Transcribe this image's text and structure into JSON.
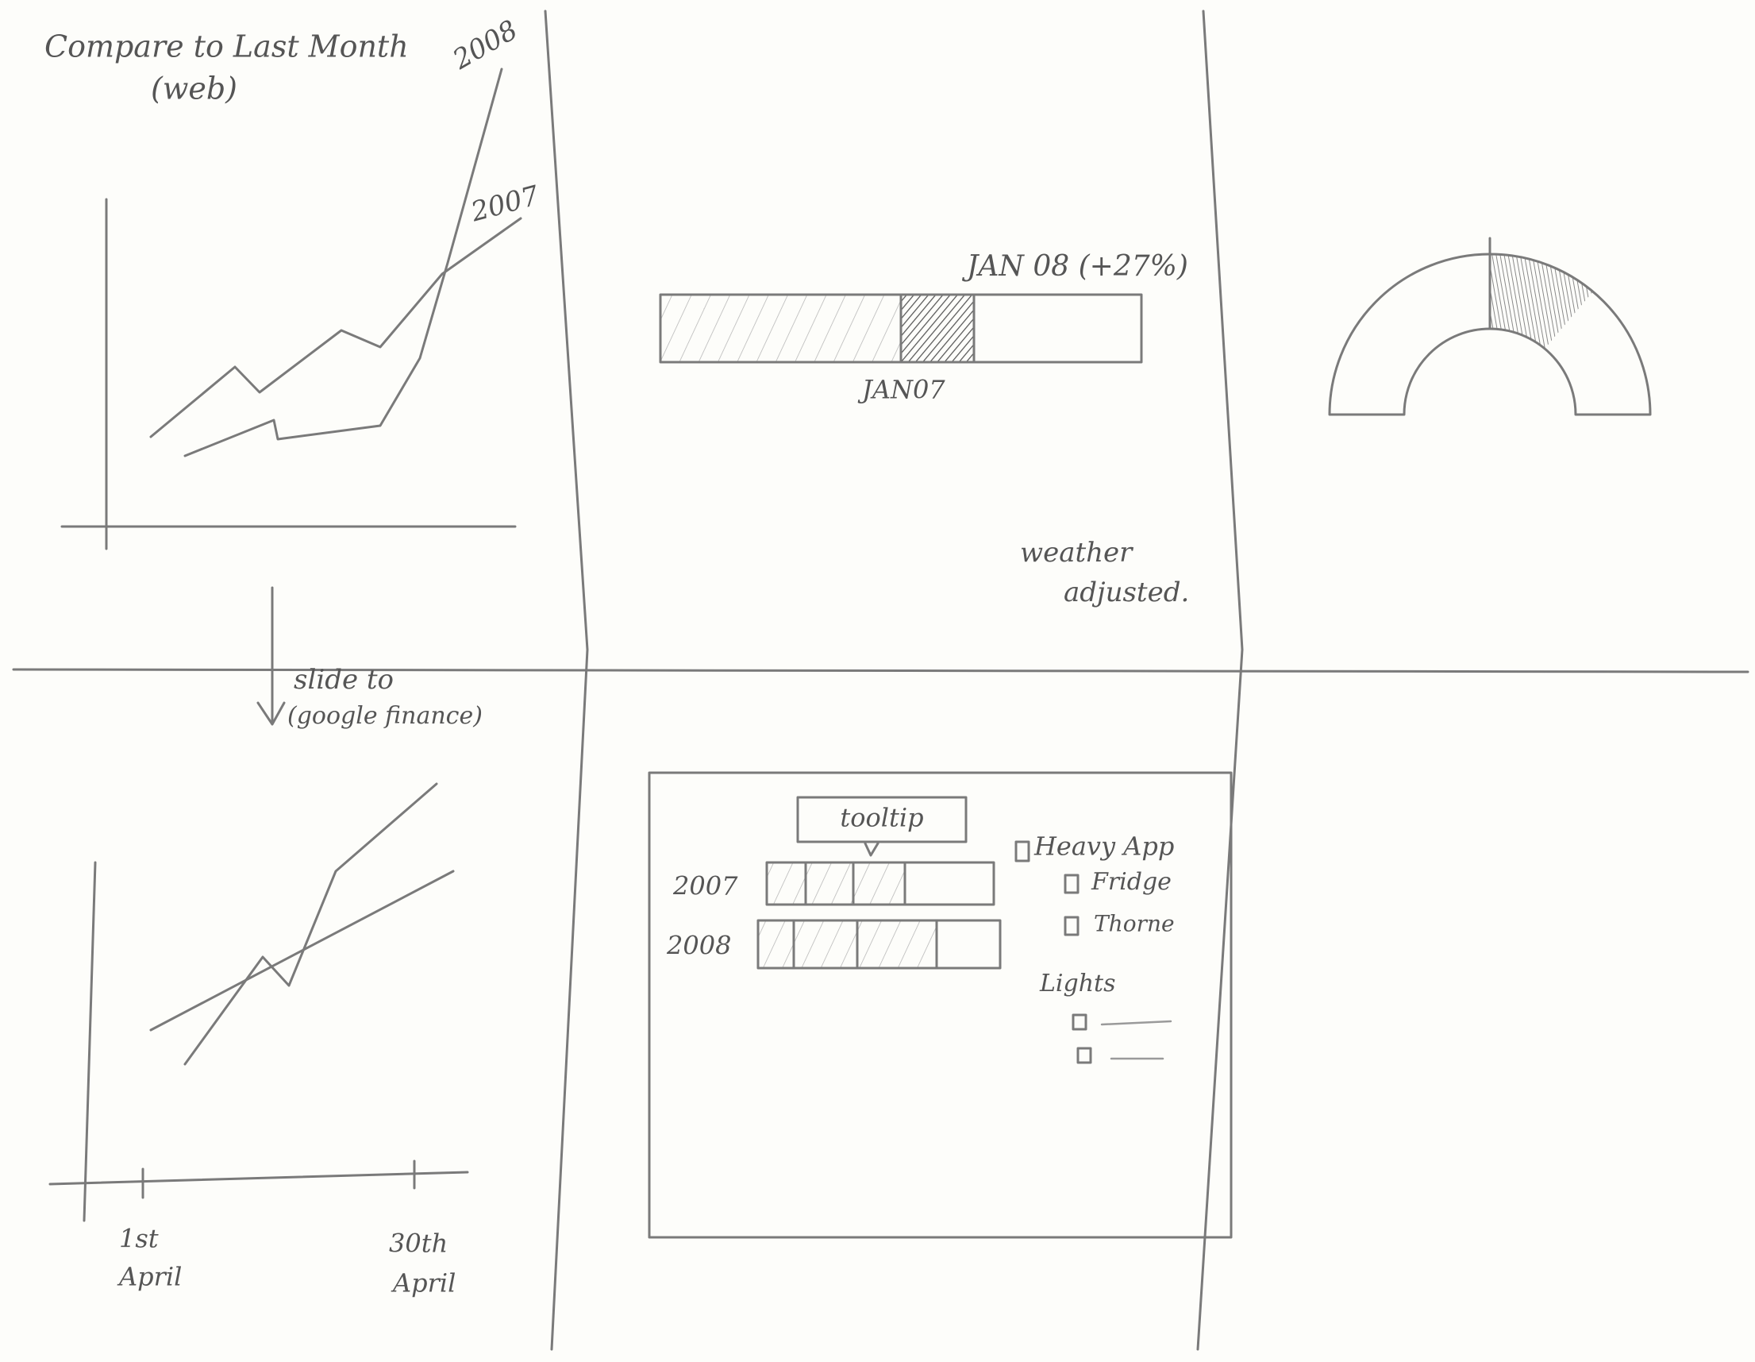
{
  "compare_panel": {
    "title": "Compare to Last Month",
    "subtitle": "(web)",
    "line_labels": [
      "2008",
      "2007"
    ]
  },
  "slide_note": [
    "slide to",
    "(google finance)"
  ],
  "progress_panel": {
    "current_label": "JAN 08 (+27%)",
    "previous_label": "JAN07",
    "note": [
      "weather",
      "adjusted."
    ]
  },
  "month_panel": {
    "x_labels": [
      [
        "1st",
        "April"
      ],
      [
        "30th",
        "April"
      ]
    ]
  },
  "breakdown_panel": {
    "tooltip": "tooltip",
    "rows": [
      "2007",
      "2008"
    ],
    "options": {
      "group": "Heavy App",
      "items": [
        "Fridge",
        "Thorne"
      ],
      "group2": "Lights"
    }
  }
}
